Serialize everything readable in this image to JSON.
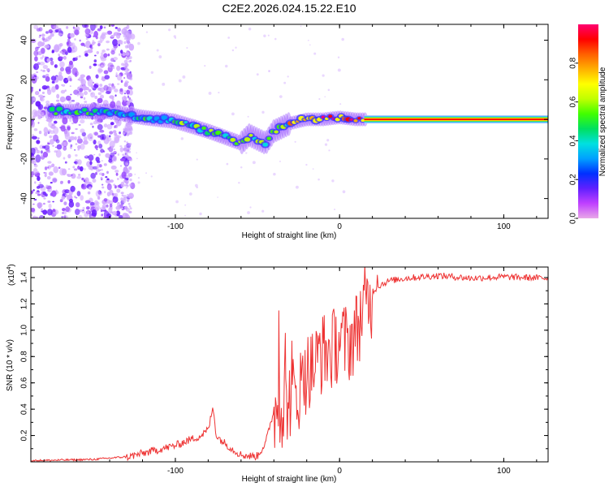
{
  "title": "C2E2.2026.024.15.22.E10",
  "top_panel": {
    "ylabel": "Frequency (Hz)",
    "xlabel": "Height of straight line (km)",
    "colorbar_label": "Normalized spectral amplitude",
    "colorbar_colors": [
      "#e8a8e8",
      "#c040ff",
      "#6020ff",
      "#0030ff",
      "#00a0ff",
      "#00e0e0",
      "#00e060",
      "#40ff00",
      "#c0ff00",
      "#ffff00",
      "#ffb000",
      "#ff6000",
      "#ff0000",
      "#ff0070"
    ]
  },
  "bottom_panel": {
    "ylabel": "SNR (10 * v/v)",
    "multiplier": "(x10",
    "multiplier_exp": "4",
    "xlabel": "Height of straight line (km)",
    "line_color": "#ee3333"
  },
  "chart_data": [
    {
      "type": "heatmap",
      "title": "C2E2.2026.024.15.22.E10",
      "xlabel": "Height of straight line (km)",
      "ylabel": "Frequency (Hz)",
      "xlim": [
        -188,
        127
      ],
      "ylim": [
        -50,
        48
      ],
      "xticks": [
        -100,
        0,
        100
      ],
      "xtick_labels": [
        "-100",
        "0",
        "100"
      ],
      "yticks": [
        -40,
        -20,
        0,
        20,
        40
      ],
      "ytick_labels": [
        "-40",
        "-20",
        "0",
        "20",
        "40"
      ],
      "colorbar": {
        "label": "Normalized spectral amplitude",
        "range": [
          0,
          1
        ],
        "ticks": [
          0.0,
          0.2,
          0.4,
          0.6,
          0.8
        ],
        "tick_labels": [
          "0.0",
          "0.2",
          "0.4",
          "0.6",
          "0.8"
        ]
      },
      "ridge": {
        "x": [
          -175,
          -150,
          -140,
          -120,
          -100,
          -80,
          -70,
          -60,
          -55,
          -45,
          -40,
          -35,
          -30,
          -20,
          -10,
          0,
          10,
          16,
          127
        ],
        "y": [
          4,
          4,
          4,
          1,
          -1,
          -6,
          -9,
          -12,
          -8,
          -12,
          -6,
          -4,
          -2,
          0,
          0,
          1,
          0,
          0,
          0
        ]
      }
    },
    {
      "type": "line",
      "xlabel": "Height of straight line (km)",
      "ylabel": "SNR (10 * v/v)",
      "y_multiplier": "x10^4",
      "xlim": [
        -188,
        127
      ],
      "ylim": [
        0,
        1.48
      ],
      "xticks": [
        -100,
        0,
        100
      ],
      "xtick_labels": [
        "-100",
        "0",
        "100"
      ],
      "yticks": [
        0.2,
        0.4,
        0.6,
        0.8,
        1.0,
        1.2,
        1.4
      ],
      "ytick_labels": [
        "0.2",
        "0.4",
        "0.6",
        "0.8",
        "1.0",
        "1.2",
        "1.4"
      ],
      "series": [
        {
          "name": "SNR",
          "x": [
            -188,
            -150,
            -130,
            -120,
            -110,
            -100,
            -90,
            -85,
            -80,
            -77,
            -75,
            -70,
            -65,
            -60,
            -55,
            -50,
            -45,
            -40,
            -37,
            -35,
            -30,
            -25,
            -20,
            -15,
            -10,
            -5,
            0,
            5,
            10,
            15,
            20,
            25,
            30,
            40,
            60,
            80,
            100,
            127
          ],
          "y": [
            0.01,
            0.02,
            0.04,
            0.07,
            0.1,
            0.13,
            0.18,
            0.2,
            0.25,
            0.42,
            0.2,
            0.15,
            0.1,
            0.06,
            0.05,
            0.05,
            0.15,
            0.4,
            0.55,
            0.45,
            0.55,
            0.6,
            0.75,
            0.8,
            0.9,
            0.9,
            1.0,
            0.95,
            1.05,
            1.25,
            1.3,
            1.35,
            1.38,
            1.4,
            1.42,
            1.4,
            1.41,
            1.4
          ],
          "spikes": [
            {
              "x": -37,
              "y": 1.15
            },
            {
              "x": -33,
              "y": 0.98
            },
            {
              "x": -29,
              "y": 0.92
            },
            {
              "x": -21,
              "y": 0.85
            },
            {
              "x": -12,
              "y": 0.98
            },
            {
              "x": 9,
              "y": 1.15
            },
            {
              "x": 23,
              "y": 1.42
            }
          ]
        }
      ]
    }
  ]
}
